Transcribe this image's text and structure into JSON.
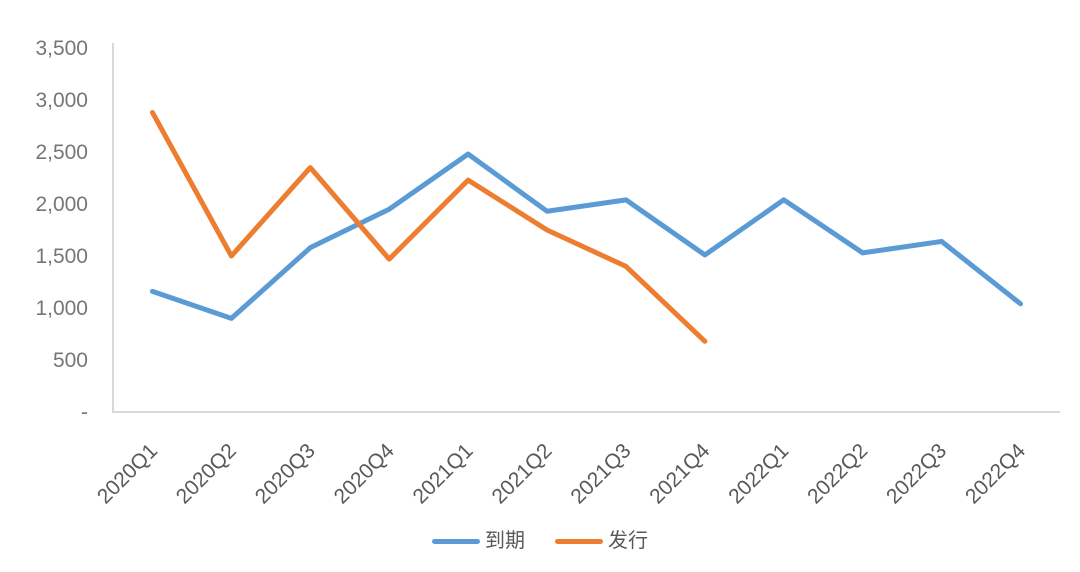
{
  "chart_data": {
    "type": "line",
    "title": "",
    "categories": [
      "2020Q1",
      "2020Q2",
      "2020Q3",
      "2020Q4",
      "2021Q1",
      "2021Q2",
      "2021Q3",
      "2021Q4",
      "2022Q1",
      "2022Q2",
      "2022Q3",
      "2022Q4"
    ],
    "series": [
      {
        "name": "到期",
        "color": "#5B9BD5",
        "values": [
          1160,
          900,
          1580,
          1950,
          2480,
          1930,
          2040,
          1510,
          2040,
          1530,
          1640,
          1040
        ]
      },
      {
        "name": "发行",
        "color": "#ED7D31",
        "values": [
          2880,
          1500,
          2350,
          1470,
          2230,
          1750,
          1400,
          680
        ]
      }
    ],
    "ylim": [
      0,
      3500
    ],
    "ytick_step": 500,
    "ytick_labels": [
      "-",
      "500",
      "1,000",
      "1,500",
      "2,000",
      "2,500",
      "3,000",
      "3,500"
    ],
    "grid": false,
    "legend_position": "bottom",
    "xlabel_rotation": -45,
    "style": {
      "axis_color": "#D9D9D9",
      "ytick_label_color": "#767676",
      "xtick_label_color": "#595959",
      "legend_text_color": "#595959",
      "line_width": 5
    }
  }
}
